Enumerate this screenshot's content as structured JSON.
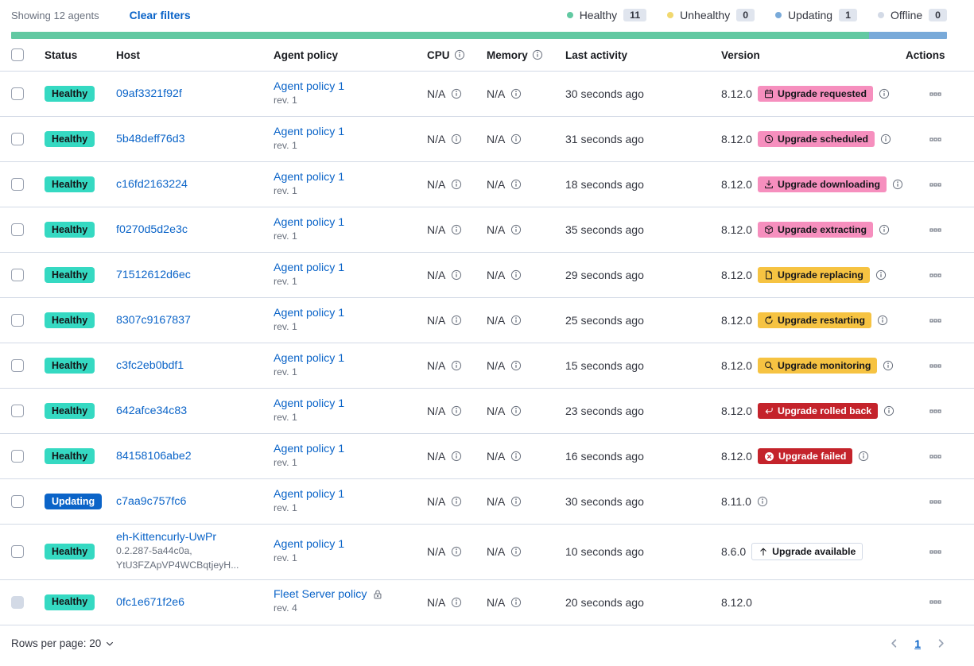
{
  "toolbar": {
    "showing_text": "Showing 12 agents",
    "clear_filters_label": "Clear filters"
  },
  "legend": {
    "items": [
      {
        "label": "Healthy",
        "count": "11",
        "color": "#62C9A2"
      },
      {
        "label": "Unhealthy",
        "count": "0",
        "color": "#F1D86F"
      },
      {
        "label": "Updating",
        "count": "1",
        "color": "#79AAD9"
      },
      {
        "label": "Offline",
        "count": "0",
        "color": "#D3DAE6"
      }
    ]
  },
  "status_bar": {
    "segments": [
      {
        "status": "healthy",
        "color": "#62C9A2",
        "percent": 91.7
      },
      {
        "status": "updating",
        "color": "#79AAD9",
        "percent": 8.3
      }
    ]
  },
  "table": {
    "headers": {
      "status": "Status",
      "host": "Host",
      "policy": "Agent policy",
      "cpu": "CPU",
      "memory": "Memory",
      "last_activity": "Last activity",
      "version": "Version",
      "actions": "Actions"
    },
    "rows": [
      {
        "status_label": "Healthy",
        "status_type": "healthy",
        "host": "09af3321f92f",
        "host_subtext": null,
        "policy": "Agent policy 1",
        "policy_rev": "rev. 1",
        "policy_locked": false,
        "cpu": "N/A",
        "memory": "N/A",
        "last_activity": "30 seconds ago",
        "version": "8.12.0",
        "upgrade_badge": {
          "label": "Upgrade requested",
          "type": "accent",
          "icon": "calendar-icon"
        },
        "version_info": true,
        "checkbox_disabled": false
      },
      {
        "status_label": "Healthy",
        "status_type": "healthy",
        "host": "5b48deff76d3",
        "host_subtext": null,
        "policy": "Agent policy 1",
        "policy_rev": "rev. 1",
        "policy_locked": false,
        "cpu": "N/A",
        "memory": "N/A",
        "last_activity": "31 seconds ago",
        "version": "8.12.0",
        "upgrade_badge": {
          "label": "Upgrade scheduled",
          "type": "accent",
          "icon": "clock-icon"
        },
        "version_info": true,
        "checkbox_disabled": false
      },
      {
        "status_label": "Healthy",
        "status_type": "healthy",
        "host": "c16fd2163224",
        "host_subtext": null,
        "policy": "Agent policy 1",
        "policy_rev": "rev. 1",
        "policy_locked": false,
        "cpu": "N/A",
        "memory": "N/A",
        "last_activity": "18 seconds ago",
        "version": "8.12.0",
        "upgrade_badge": {
          "label": "Upgrade downloading",
          "type": "accent",
          "icon": "download-icon"
        },
        "version_info": true,
        "checkbox_disabled": false
      },
      {
        "status_label": "Healthy",
        "status_type": "healthy",
        "host": "f0270d5d2e3c",
        "host_subtext": null,
        "policy": "Agent policy 1",
        "policy_rev": "rev. 1",
        "policy_locked": false,
        "cpu": "N/A",
        "memory": "N/A",
        "last_activity": "35 seconds ago",
        "version": "8.12.0",
        "upgrade_badge": {
          "label": "Upgrade extracting",
          "type": "accent",
          "icon": "package-icon"
        },
        "version_info": true,
        "checkbox_disabled": false
      },
      {
        "status_label": "Healthy",
        "status_type": "healthy",
        "host": "71512612d6ec",
        "host_subtext": null,
        "policy": "Agent policy 1",
        "policy_rev": "rev. 1",
        "policy_locked": false,
        "cpu": "N/A",
        "memory": "N/A",
        "last_activity": "29 seconds ago",
        "version": "8.12.0",
        "upgrade_badge": {
          "label": "Upgrade replacing",
          "type": "warning",
          "icon": "document-icon"
        },
        "version_info": true,
        "checkbox_disabled": false
      },
      {
        "status_label": "Healthy",
        "status_type": "healthy",
        "host": "8307c9167837",
        "host_subtext": null,
        "policy": "Agent policy 1",
        "policy_rev": "rev. 1",
        "policy_locked": false,
        "cpu": "N/A",
        "memory": "N/A",
        "last_activity": "25 seconds ago",
        "version": "8.12.0",
        "upgrade_badge": {
          "label": "Upgrade restarting",
          "type": "warning",
          "icon": "refresh-icon"
        },
        "version_info": true,
        "checkbox_disabled": false
      },
      {
        "status_label": "Healthy",
        "status_type": "healthy",
        "host": "c3fc2eb0bdf1",
        "host_subtext": null,
        "policy": "Agent policy 1",
        "policy_rev": "rev. 1",
        "policy_locked": false,
        "cpu": "N/A",
        "memory": "N/A",
        "last_activity": "15 seconds ago",
        "version": "8.12.0",
        "upgrade_badge": {
          "label": "Upgrade monitoring",
          "type": "warning",
          "icon": "inspect-icon"
        },
        "version_info": true,
        "checkbox_disabled": false
      },
      {
        "status_label": "Healthy",
        "status_type": "healthy",
        "host": "642afce34c83",
        "host_subtext": null,
        "policy": "Agent policy 1",
        "policy_rev": "rev. 1",
        "policy_locked": false,
        "cpu": "N/A",
        "memory": "N/A",
        "last_activity": "23 seconds ago",
        "version": "8.12.0",
        "upgrade_badge": {
          "label": "Upgrade rolled back",
          "type": "danger",
          "icon": "return-icon"
        },
        "version_info": true,
        "checkbox_disabled": false
      },
      {
        "status_label": "Healthy",
        "status_type": "healthy",
        "host": "84158106abe2",
        "host_subtext": null,
        "policy": "Agent policy 1",
        "policy_rev": "rev. 1",
        "policy_locked": false,
        "cpu": "N/A",
        "memory": "N/A",
        "last_activity": "16 seconds ago",
        "version": "8.12.0",
        "upgrade_badge": {
          "label": "Upgrade failed",
          "type": "danger",
          "icon": "error-icon"
        },
        "version_info": true,
        "checkbox_disabled": false
      },
      {
        "status_label": "Updating",
        "status_type": "updating",
        "host": "c7aa9c757fc6",
        "host_subtext": null,
        "policy": "Agent policy 1",
        "policy_rev": "rev. 1",
        "policy_locked": false,
        "cpu": "N/A",
        "memory": "N/A",
        "last_activity": "30 seconds ago",
        "version": "8.11.0",
        "upgrade_badge": null,
        "version_info": true,
        "checkbox_disabled": false
      },
      {
        "status_label": "Healthy",
        "status_type": "healthy",
        "host": "eh-Kittencurly-UwPr",
        "host_subtext": "0.2.287-5a44c0a,\nYtU3FZApVP4WCBqtjeyH...",
        "policy": "Agent policy 1",
        "policy_rev": "rev. 1",
        "policy_locked": false,
        "cpu": "N/A",
        "memory": "N/A",
        "last_activity": "10 seconds ago",
        "version": "8.6.0",
        "upgrade_badge": {
          "label": "Upgrade available",
          "type": "hollow",
          "icon": "arrow-up-icon"
        },
        "version_info": false,
        "checkbox_disabled": false
      },
      {
        "status_label": "Healthy",
        "status_type": "healthy",
        "host": "0fc1e671f2e6",
        "host_subtext": null,
        "policy": "Fleet Server policy",
        "policy_rev": "rev. 4",
        "policy_locked": true,
        "cpu": "N/A",
        "memory": "N/A",
        "last_activity": "20 seconds ago",
        "version": "8.12.0",
        "upgrade_badge": null,
        "version_info": false,
        "checkbox_disabled": true
      }
    ]
  },
  "footer": {
    "rows_per_page_label": "Rows per page: 20",
    "page": "1"
  },
  "colors": {
    "link": "#0B64C8",
    "healthy_badge": "#35D9C2",
    "updating_badge": "#0B64C8",
    "accent_badge": "#F68FBE",
    "warning_badge": "#F6C342",
    "danger_badge": "#C4232B"
  }
}
